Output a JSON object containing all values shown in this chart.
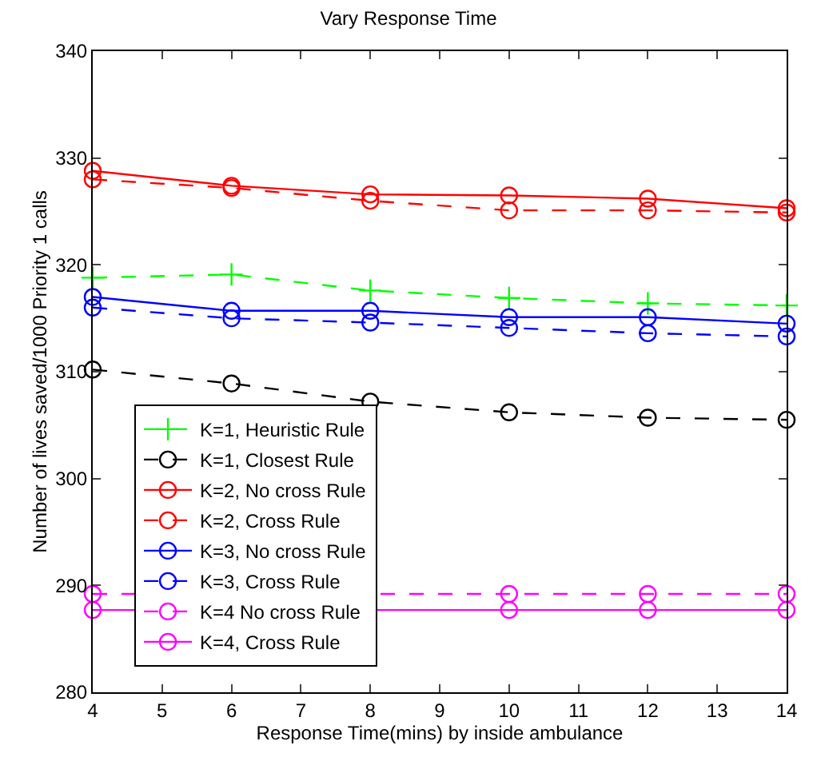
{
  "chart_data": {
    "type": "line",
    "title": "Vary Response Time",
    "xlabel": "Response Time(mins) by inside ambulance",
    "ylabel": "Number of lives saved/1000 Priority 1 calls",
    "x": [
      4,
      6,
      8,
      10,
      12,
      14
    ],
    "series": [
      {
        "name": "K=1, Heuristic Rule",
        "color": "#00ff00",
        "marker": "cross",
        "line_style": "dashed",
        "values": [
          318.8,
          319.1,
          317.6,
          316.9,
          316.4,
          316.2
        ]
      },
      {
        "name": "K=1, Closest Rule",
        "color": "#000000",
        "marker": "circle",
        "line_style": "dashed",
        "values": [
          310.2,
          308.9,
          307.2,
          306.2,
          305.7,
          305.5
        ]
      },
      {
        "name": "K=2, No cross Rule",
        "color": "#ff0000",
        "marker": "circle",
        "line_style": "solid",
        "values": [
          328.8,
          327.4,
          326.6,
          326.5,
          326.2,
          325.3
        ]
      },
      {
        "name": "K=2, Cross Rule",
        "color": "#ff0000",
        "marker": "circle",
        "line_style": "dashed",
        "values": [
          328.0,
          327.2,
          326.0,
          325.1,
          325.1,
          324.9
        ]
      },
      {
        "name": "K=3, No cross Rule",
        "color": "#0000ff",
        "marker": "circle",
        "line_style": "solid",
        "values": [
          317.0,
          315.7,
          315.7,
          315.1,
          315.1,
          314.5
        ]
      },
      {
        "name": "K=3, Cross Rule",
        "color": "#0000ff",
        "marker": "circle",
        "line_style": "dashed",
        "values": [
          316.0,
          315.0,
          314.6,
          314.1,
          313.6,
          313.3
        ]
      },
      {
        "name": "K=4 No cross Rule",
        "color": "#ff00ff",
        "marker": "circle",
        "line_style": "dashed",
        "values": [
          289.2,
          null,
          null,
          289.2,
          289.2,
          289.2
        ]
      },
      {
        "name": "K=4, Cross Rule",
        "color": "#ff00ff",
        "marker": "circle",
        "line_style": "solid",
        "values": [
          287.7,
          null,
          null,
          287.7,
          287.7,
          287.7
        ]
      }
    ],
    "xlim": [
      4,
      14
    ],
    "xticks": [
      4,
      5,
      6,
      7,
      8,
      9,
      10,
      11,
      12,
      13,
      14
    ],
    "ylim": [
      280,
      340
    ],
    "yticks": [
      280,
      290,
      300,
      310,
      320,
      330,
      340
    ],
    "legend": "bottom left"
  }
}
